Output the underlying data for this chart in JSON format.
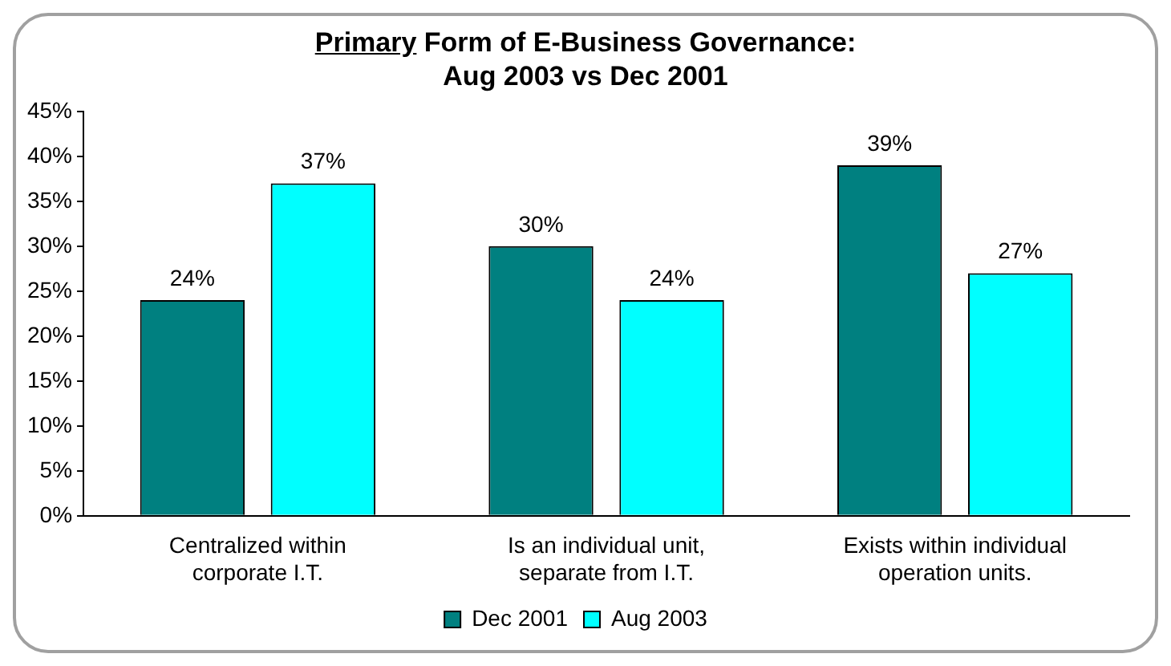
{
  "chart_data": {
    "type": "bar",
    "title": "Primary Form of E-Business Governance: Aug 2003 vs Dec 2001",
    "categories": [
      "Centralized within corporate I.T.",
      "Is an individual unit, separate from I.T.",
      "Exists within individual operation units."
    ],
    "series": [
      {
        "name": "Dec 2001",
        "color": "#008080",
        "values": [
          24,
          30,
          39
        ],
        "value_labels": [
          "24%",
          "30%",
          "39%"
        ]
      },
      {
        "name": "Aug 2003",
        "color": "#00ffff",
        "values": [
          37,
          24,
          27
        ],
        "value_labels": [
          "37%",
          "24%",
          "27%"
        ]
      }
    ],
    "ylim": [
      0,
      45
    ],
    "yticks": [
      {
        "value": 0,
        "label": "0%"
      },
      {
        "value": 5,
        "label": "5%"
      },
      {
        "value": 10,
        "label": "10%"
      },
      {
        "value": 15,
        "label": "15%"
      },
      {
        "value": 20,
        "label": "20%"
      },
      {
        "value": 25,
        "label": "25%"
      },
      {
        "value": 30,
        "label": "30%"
      },
      {
        "value": 35,
        "label": "35%"
      },
      {
        "value": 40,
        "label": "40%"
      },
      {
        "value": 45,
        "label": "45%"
      }
    ],
    "grid": false,
    "legend": "bottom"
  }
}
